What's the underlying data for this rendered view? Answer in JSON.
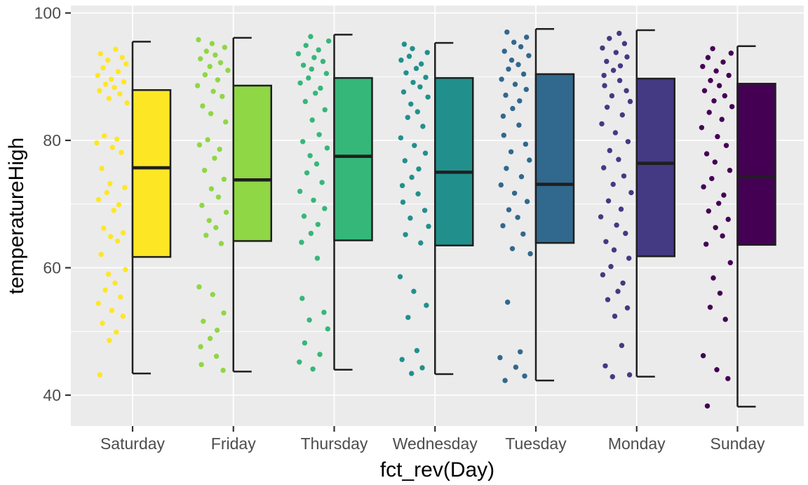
{
  "chart_data": {
    "type": "boxplot",
    "subtype": "boxplot-with-jittered-points",
    "title": "",
    "xlabel": "fct_rev(Day)",
    "ylabel": "temperatureHigh",
    "y_ticks": [
      40,
      60,
      80,
      100
    ],
    "y_tick_labels": [
      "40",
      "60",
      "80",
      "100"
    ],
    "y_minor_gridlines": [
      50,
      70,
      90
    ],
    "ylim": [
      35,
      101
    ],
    "grid": "on",
    "legend_position": "none",
    "panel_bg": "#EBEBEB",
    "grid_color": "#FFFFFF",
    "outline_color": "#1F1F1F",
    "tick_color": "#333333",
    "tick_label_color": "#4D4D4D",
    "axis_title_color": "#000000",
    "categories": [
      "Saturday",
      "Friday",
      "Thursday",
      "Wednesday",
      "Tuesday",
      "Monday",
      "Sunday"
    ],
    "series": [
      {
        "name": "Saturday",
        "color": "#FDE725",
        "box": {
          "whisker_low": 43.4,
          "q1": 61.7,
          "median": 75.7,
          "q3": 87.9,
          "whisker_high": 95.5
        },
        "point_values": [
          94.3,
          93.6,
          93.0,
          92.6,
          92.0,
          91.4,
          90.8,
          90.2,
          89.6,
          89.2,
          88.8,
          88.3,
          87.8,
          87.3,
          86.6,
          85.9,
          80.7,
          80.2,
          79.6,
          78.9,
          78.1,
          75.6,
          73.2,
          72.6,
          71.8,
          70.7,
          69.9,
          69.0,
          66.2,
          65.5,
          64.9,
          64.2,
          62.1,
          59.7,
          59.0,
          57.6,
          56.5,
          55.4,
          54.4,
          53.3,
          52.4,
          51.3,
          49.9,
          48.6,
          43.2
        ],
        "point_jitter": [
          0.62,
          0.14,
          0.83,
          0.37,
          0.95,
          0.22,
          0.7,
          0.05,
          0.48,
          0.88,
          0.3,
          0.58,
          0.11,
          0.75,
          0.41,
          0.98,
          0.26,
          0.66,
          0.02,
          0.52,
          0.8,
          0.18,
          0.44,
          0.91,
          0.34,
          0.08,
          0.72,
          0.56,
          0.24,
          0.86,
          0.46,
          0.68,
          0.16,
          0.93,
          0.39,
          0.6,
          0.29,
          0.77,
          0.07,
          0.5,
          0.85,
          0.2,
          0.64,
          0.42,
          0.12
        ]
      },
      {
        "name": "Friday",
        "color": "#8FD744",
        "box": {
          "whisker_low": 43.7,
          "q1": 64.2,
          "median": 73.8,
          "q3": 88.6,
          "whisker_high": 96.1
        },
        "point_values": [
          95.8,
          95.2,
          94.6,
          94.0,
          93.4,
          92.8,
          92.2,
          91.6,
          91.0,
          90.3,
          89.5,
          88.6,
          87.7,
          86.9,
          85.4,
          84.2,
          82.9,
          80.1,
          79.3,
          78.6,
          77.2,
          75.3,
          73.9,
          72.4,
          71.1,
          69.8,
          68.7,
          67.4,
          66.3,
          65.1,
          63.8,
          57.0,
          55.8,
          52.9,
          51.6,
          50.2,
          48.9,
          47.6,
          46.1,
          44.8,
          43.9
        ],
        "point_jitter": [
          0.05,
          0.48,
          0.88,
          0.3,
          0.58,
          0.11,
          0.75,
          0.41,
          0.98,
          0.26,
          0.66,
          0.02,
          0.52,
          0.8,
          0.18,
          0.44,
          0.91,
          0.34,
          0.08,
          0.72,
          0.56,
          0.24,
          0.86,
          0.46,
          0.68,
          0.16,
          0.93,
          0.39,
          0.6,
          0.29,
          0.77,
          0.07,
          0.5,
          0.85,
          0.2,
          0.64,
          0.42,
          0.12,
          0.62,
          0.14,
          0.83
        ]
      },
      {
        "name": "Thursday",
        "color": "#35B779",
        "box": {
          "whisker_low": 44.0,
          "q1": 64.3,
          "median": 77.5,
          "q3": 89.8,
          "whisker_high": 96.6
        },
        "point_values": [
          96.3,
          95.6,
          94.9,
          94.2,
          93.6,
          93.0,
          92.4,
          91.8,
          91.2,
          90.5,
          89.8,
          89.0,
          88.2,
          87.4,
          86.1,
          84.8,
          83.2,
          80.9,
          79.8,
          78.8,
          77.6,
          76.3,
          74.9,
          73.4,
          72.0,
          70.6,
          69.3,
          68.1,
          66.8,
          65.4,
          64.0,
          61.5,
          55.2,
          53.0,
          51.8,
          50.4,
          48.2,
          46.4,
          45.2,
          44.1
        ],
        "point_jitter": [
          0.41,
          0.98,
          0.26,
          0.66,
          0.02,
          0.52,
          0.8,
          0.18,
          0.44,
          0.91,
          0.34,
          0.08,
          0.72,
          0.56,
          0.24,
          0.86,
          0.46,
          0.68,
          0.16,
          0.93,
          0.39,
          0.6,
          0.29,
          0.77,
          0.07,
          0.5,
          0.85,
          0.2,
          0.64,
          0.42,
          0.12,
          0.62,
          0.14,
          0.83,
          0.37,
          0.95,
          0.22,
          0.7,
          0.05,
          0.48
        ]
      },
      {
        "name": "Wednesday",
        "color": "#21908C",
        "box": {
          "whisker_low": 43.3,
          "q1": 63.5,
          "median": 75.0,
          "q3": 89.8,
          "whisker_high": 95.3
        },
        "point_values": [
          95.1,
          94.4,
          93.8,
          93.2,
          92.6,
          92.0,
          91.3,
          90.6,
          89.9,
          89.1,
          88.4,
          87.6,
          86.8,
          85.7,
          84.5,
          83.6,
          82.2,
          80.4,
          79.2,
          78.0,
          76.8,
          75.5,
          74.2,
          72.9,
          71.6,
          70.3,
          69.0,
          67.8,
          66.5,
          65.2,
          63.9,
          58.6,
          56.3,
          54.1,
          52.2,
          47.0,
          45.6,
          44.3,
          43.4
        ],
        "point_jitter": [
          0.18,
          0.44,
          0.91,
          0.34,
          0.08,
          0.72,
          0.56,
          0.24,
          0.86,
          0.46,
          0.68,
          0.16,
          0.93,
          0.39,
          0.6,
          0.29,
          0.77,
          0.07,
          0.5,
          0.85,
          0.2,
          0.64,
          0.42,
          0.12,
          0.62,
          0.14,
          0.83,
          0.37,
          0.95,
          0.22,
          0.7,
          0.05,
          0.48,
          0.88,
          0.3,
          0.58,
          0.11,
          0.75,
          0.41
        ]
      },
      {
        "name": "Tuesday",
        "color": "#31688E",
        "box": {
          "whisker_low": 42.3,
          "q1": 63.9,
          "median": 73.1,
          "q3": 90.4,
          "whisker_high": 97.5
        },
        "point_values": [
          97.0,
          96.2,
          95.4,
          94.7,
          94.0,
          93.3,
          92.6,
          91.9,
          91.2,
          90.4,
          89.6,
          88.8,
          88.0,
          87.1,
          86.2,
          85.0,
          83.8,
          82.4,
          80.8,
          79.4,
          78.2,
          76.9,
          75.6,
          74.3,
          73.0,
          71.7,
          70.4,
          69.1,
          67.9,
          66.6,
          65.3,
          63.0,
          62.2,
          54.6,
          46.8,
          45.9,
          44.4,
          43.0,
          42.3
        ],
        "point_jitter": [
          0.24,
          0.86,
          0.46,
          0.68,
          0.16,
          0.93,
          0.39,
          0.6,
          0.29,
          0.77,
          0.07,
          0.5,
          0.85,
          0.2,
          0.64,
          0.42,
          0.12,
          0.62,
          0.14,
          0.83,
          0.37,
          0.95,
          0.22,
          0.7,
          0.05,
          0.48,
          0.88,
          0.3,
          0.58,
          0.11,
          0.75,
          0.41,
          0.98,
          0.26,
          0.66,
          0.02,
          0.52,
          0.8,
          0.18
        ]
      },
      {
        "name": "Monday",
        "color": "#443983",
        "box": {
          "whisker_low": 42.9,
          "q1": 61.8,
          "median": 76.4,
          "q3": 89.7,
          "whisker_high": 97.3
        },
        "point_values": [
          96.8,
          96.0,
          95.2,
          94.5,
          93.8,
          93.1,
          92.4,
          91.7,
          91.0,
          90.2,
          89.4,
          88.6,
          87.8,
          87.0,
          86.1,
          85.2,
          84.0,
          82.6,
          81.2,
          79.8,
          78.4,
          77.0,
          75.7,
          74.4,
          73.1,
          71.8,
          70.5,
          69.2,
          68.0,
          66.7,
          65.4,
          64.1,
          62.8,
          61.5,
          60.2,
          58.9,
          57.6,
          56.3,
          55.0,
          53.7,
          52.4,
          47.8,
          44.6,
          43.2,
          42.9
        ],
        "point_jitter": [
          0.6,
          0.29,
          0.77,
          0.07,
          0.5,
          0.85,
          0.2,
          0.64,
          0.42,
          0.12,
          0.62,
          0.14,
          0.83,
          0.37,
          0.95,
          0.22,
          0.7,
          0.05,
          0.48,
          0.88,
          0.3,
          0.58,
          0.11,
          0.75,
          0.41,
          0.98,
          0.26,
          0.66,
          0.02,
          0.52,
          0.8,
          0.18,
          0.44,
          0.91,
          0.34,
          0.08,
          0.72,
          0.56,
          0.24,
          0.86,
          0.46,
          0.68,
          0.16,
          0.93,
          0.39
        ]
      },
      {
        "name": "Sunday",
        "color": "#440154",
        "box": {
          "whisker_low": 38.2,
          "q1": 63.6,
          "median": 74.3,
          "q3": 88.9,
          "whisker_high": 94.8
        },
        "point_values": [
          94.4,
          93.7,
          93.0,
          92.3,
          91.6,
          90.9,
          90.2,
          89.4,
          88.6,
          87.8,
          87.0,
          86.2,
          85.3,
          84.4,
          83.3,
          82.0,
          80.6,
          79.2,
          77.9,
          76.6,
          75.3,
          74.0,
          72.7,
          71.4,
          70.1,
          68.9,
          67.6,
          66.3,
          65.0,
          63.7,
          60.8,
          58.4,
          56.0,
          53.8,
          51.9,
          46.2,
          44.0,
          42.6,
          38.3
        ],
        "point_jitter": [
          0.37,
          0.95,
          0.22,
          0.7,
          0.05,
          0.48,
          0.88,
          0.3,
          0.58,
          0.11,
          0.75,
          0.41,
          0.98,
          0.26,
          0.66,
          0.02,
          0.52,
          0.8,
          0.18,
          0.44,
          0.91,
          0.34,
          0.08,
          0.72,
          0.56,
          0.24,
          0.86,
          0.46,
          0.68,
          0.16,
          0.93,
          0.39,
          0.6,
          0.29,
          0.77,
          0.07,
          0.5,
          0.85,
          0.2
        ]
      }
    ]
  }
}
